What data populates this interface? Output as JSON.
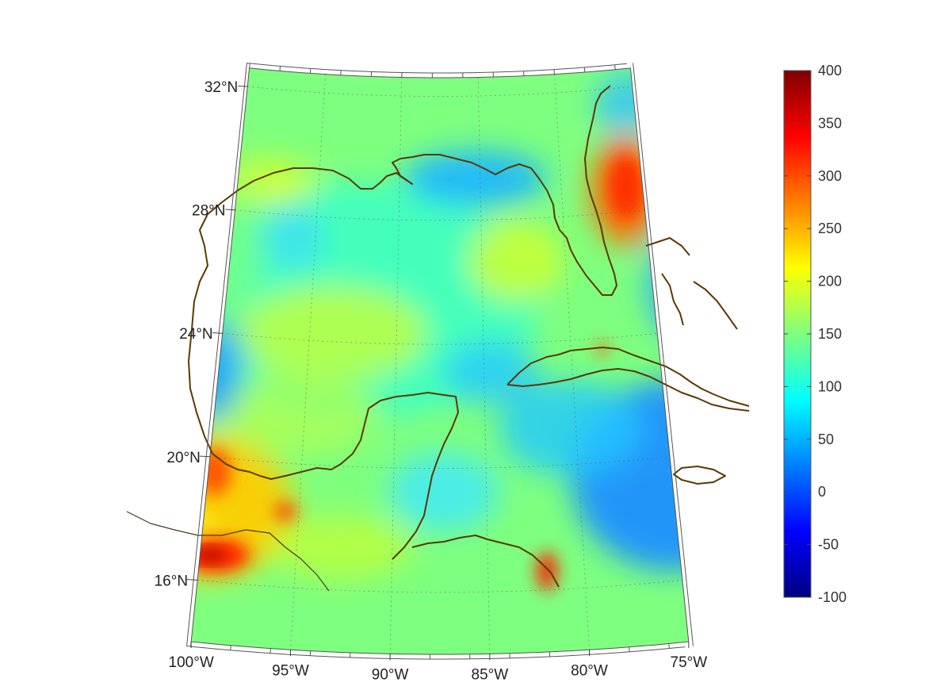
{
  "map": {
    "projection": "conic",
    "lat_range": [
      14,
      32.6
    ],
    "lon_range": [
      -100,
      -75
    ],
    "lat_labels": [
      "32°N",
      "28°N",
      "24°N",
      "20°N",
      "16°N"
    ],
    "lat_values": [
      32,
      28,
      24,
      20,
      16
    ],
    "lon_labels": [
      "100°W",
      "95°W",
      "90°W",
      "85°W",
      "80°W",
      "75°W"
    ],
    "lon_values": [
      -100,
      -95,
      -90,
      -85,
      -80,
      -75
    ],
    "gridlines": true,
    "coastline_color": "#5a3a00"
  },
  "colorbar": {
    "min": -100,
    "max": 400,
    "ticks": [
      "400",
      "350",
      "300",
      "250",
      "200",
      "150",
      "100",
      "50",
      "0",
      "-50",
      "-100"
    ],
    "colormap": "jet",
    "colors": [
      "#00007f",
      "#0000ff",
      "#007fff",
      "#00ffff",
      "#7fff7f",
      "#ffff00",
      "#ff7f00",
      "#ff0000",
      "#7f0000"
    ]
  }
}
